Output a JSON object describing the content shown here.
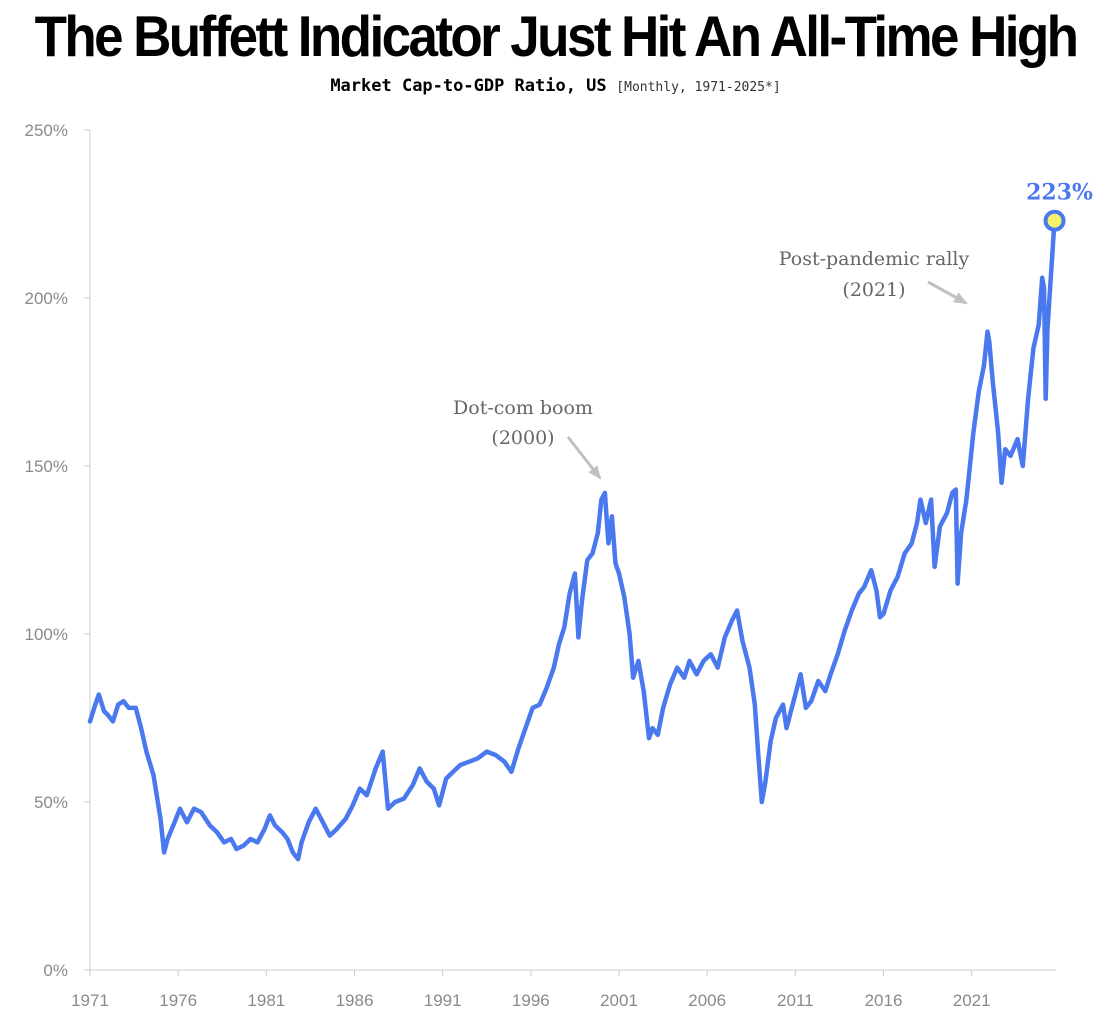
{
  "header": {
    "title": "The Buffett Indicator Just Hit An All-Time High",
    "subtitle": "Market Cap-to-GDP Ratio, US",
    "subtitle_period": "[Monthly, 1971-2025*]"
  },
  "colors": {
    "line": "#4a78ee",
    "marker_fill": "#f7f06a",
    "axis": "#cccccc",
    "arrow": "#c0c0c0"
  },
  "chart_data": {
    "type": "line",
    "title": "The Buffett Indicator Just Hit An All-Time High",
    "subtitle": "Market Cap-to-GDP Ratio, US [Monthly, 1971-2025*]",
    "xlabel": "",
    "ylabel": "",
    "xlim": [
      1971,
      2025.0
    ],
    "ylim": [
      0,
      250
    ],
    "y_ticks": [
      0,
      50,
      100,
      150,
      200,
      250
    ],
    "y_tick_labels": [
      "0%",
      "50%",
      "100%",
      "150%",
      "200%",
      "250%"
    ],
    "x_ticks": [
      1971,
      1976,
      1981,
      1986,
      1991,
      1996,
      2001,
      2006,
      2011,
      2016,
      2021
    ],
    "x_tick_labels": [
      "1971",
      "1976",
      "1981",
      "1986",
      "1991",
      "1996",
      "2001",
      "2006",
      "2011",
      "2016",
      "2021"
    ],
    "grid": false,
    "series": [
      {
        "name": "Market Cap-to-GDP Ratio",
        "points": [
          [
            1971.0,
            74
          ],
          [
            1971.3,
            79
          ],
          [
            1971.5,
            82
          ],
          [
            1971.8,
            77
          ],
          [
            1972.0,
            76
          ],
          [
            1972.3,
            74
          ],
          [
            1972.6,
            79
          ],
          [
            1972.9,
            80
          ],
          [
            1973.2,
            78
          ],
          [
            1973.6,
            78
          ],
          [
            1973.9,
            72
          ],
          [
            1974.2,
            65
          ],
          [
            1974.6,
            58
          ],
          [
            1975.0,
            45
          ],
          [
            1975.2,
            35
          ],
          [
            1975.4,
            39
          ],
          [
            1975.8,
            44
          ],
          [
            1976.1,
            48
          ],
          [
            1976.5,
            44
          ],
          [
            1976.9,
            48
          ],
          [
            1977.3,
            47
          ],
          [
            1977.8,
            43
          ],
          [
            1978.2,
            41
          ],
          [
            1978.6,
            38
          ],
          [
            1979.0,
            39
          ],
          [
            1979.3,
            36
          ],
          [
            1979.7,
            37
          ],
          [
            1980.1,
            39
          ],
          [
            1980.5,
            38
          ],
          [
            1980.9,
            42
          ],
          [
            1981.2,
            46
          ],
          [
            1981.5,
            43
          ],
          [
            1981.9,
            41
          ],
          [
            1982.2,
            39
          ],
          [
            1982.5,
            35
          ],
          [
            1982.8,
            33
          ],
          [
            1983.0,
            38
          ],
          [
            1983.4,
            44
          ],
          [
            1983.8,
            48
          ],
          [
            1984.2,
            44
          ],
          [
            1984.6,
            40
          ],
          [
            1985.0,
            42
          ],
          [
            1985.5,
            45
          ],
          [
            1985.9,
            49
          ],
          [
            1986.3,
            54
          ],
          [
            1986.7,
            52
          ],
          [
            1987.2,
            60
          ],
          [
            1987.6,
            65
          ],
          [
            1987.9,
            48
          ],
          [
            1988.3,
            50
          ],
          [
            1988.8,
            51
          ],
          [
            1989.3,
            55
          ],
          [
            1989.7,
            60
          ],
          [
            1990.1,
            56
          ],
          [
            1990.5,
            54
          ],
          [
            1990.8,
            49
          ],
          [
            1991.2,
            57
          ],
          [
            1991.6,
            59
          ],
          [
            1992.0,
            61
          ],
          [
            1992.5,
            62
          ],
          [
            1993.0,
            63
          ],
          [
            1993.5,
            65
          ],
          [
            1994.0,
            64
          ],
          [
            1994.5,
            62
          ],
          [
            1994.9,
            59
          ],
          [
            1995.3,
            66
          ],
          [
            1995.7,
            72
          ],
          [
            1996.1,
            78
          ],
          [
            1996.5,
            79
          ],
          [
            1996.9,
            84
          ],
          [
            1997.3,
            90
          ],
          [
            1997.6,
            97
          ],
          [
            1997.9,
            102
          ],
          [
            1998.2,
            112
          ],
          [
            1998.5,
            118
          ],
          [
            1998.7,
            99
          ],
          [
            1998.9,
            110
          ],
          [
            1999.2,
            122
          ],
          [
            1999.5,
            124
          ],
          [
            1999.8,
            130
          ],
          [
            2000.0,
            140
          ],
          [
            2000.2,
            142
          ],
          [
            2000.4,
            127
          ],
          [
            2000.6,
            135
          ],
          [
            2000.8,
            121
          ],
          [
            2001.0,
            118
          ],
          [
            2001.3,
            111
          ],
          [
            2001.6,
            100
          ],
          [
            2001.8,
            87
          ],
          [
            2002.1,
            92
          ],
          [
            2002.4,
            83
          ],
          [
            2002.7,
            69
          ],
          [
            2002.9,
            72
          ],
          [
            2003.2,
            70
          ],
          [
            2003.5,
            78
          ],
          [
            2003.9,
            85
          ],
          [
            2004.3,
            90
          ],
          [
            2004.7,
            87
          ],
          [
            2005.0,
            92
          ],
          [
            2005.4,
            88
          ],
          [
            2005.8,
            92
          ],
          [
            2006.2,
            94
          ],
          [
            2006.6,
            90
          ],
          [
            2007.0,
            99
          ],
          [
            2007.4,
            104
          ],
          [
            2007.7,
            107
          ],
          [
            2008.0,
            98
          ],
          [
            2008.4,
            90
          ],
          [
            2008.7,
            79
          ],
          [
            2008.9,
            64
          ],
          [
            2009.1,
            50
          ],
          [
            2009.3,
            56
          ],
          [
            2009.6,
            68
          ],
          [
            2009.9,
            75
          ],
          [
            2010.3,
            79
          ],
          [
            2010.5,
            72
          ],
          [
            2010.9,
            80
          ],
          [
            2011.3,
            88
          ],
          [
            2011.6,
            78
          ],
          [
            2011.9,
            80
          ],
          [
            2012.3,
            86
          ],
          [
            2012.7,
            83
          ],
          [
            2013.0,
            88
          ],
          [
            2013.4,
            94
          ],
          [
            2013.8,
            101
          ],
          [
            2014.2,
            107
          ],
          [
            2014.6,
            112
          ],
          [
            2014.9,
            114
          ],
          [
            2015.3,
            119
          ],
          [
            2015.6,
            113
          ],
          [
            2015.8,
            105
          ],
          [
            2016.0,
            106
          ],
          [
            2016.4,
            113
          ],
          [
            2016.8,
            117
          ],
          [
            2017.2,
            124
          ],
          [
            2017.6,
            127
          ],
          [
            2017.9,
            133
          ],
          [
            2018.1,
            140
          ],
          [
            2018.4,
            133
          ],
          [
            2018.7,
            140
          ],
          [
            2018.9,
            120
          ],
          [
            2019.2,
            132
          ],
          [
            2019.6,
            136
          ],
          [
            2019.9,
            142
          ],
          [
            2020.1,
            143
          ],
          [
            2020.2,
            115
          ],
          [
            2020.4,
            130
          ],
          [
            2020.7,
            140
          ],
          [
            2020.9,
            150
          ],
          [
            2021.1,
            160
          ],
          [
            2021.4,
            172
          ],
          [
            2021.7,
            180
          ],
          [
            2021.9,
            190
          ],
          [
            2022.0,
            187
          ],
          [
            2022.2,
            175
          ],
          [
            2022.5,
            160
          ],
          [
            2022.7,
            145
          ],
          [
            2022.9,
            155
          ],
          [
            2023.2,
            153
          ],
          [
            2023.6,
            158
          ],
          [
            2023.9,
            150
          ],
          [
            2024.2,
            170
          ],
          [
            2024.5,
            185
          ],
          [
            2024.8,
            192
          ],
          [
            2025.0,
            206
          ],
          [
            2025.1,
            203
          ],
          [
            2025.2,
            170
          ],
          [
            2025.3,
            191
          ],
          [
            2025.5,
            207
          ],
          [
            2025.7,
            223
          ]
        ]
      }
    ],
    "annotations": [
      {
        "id": "dotcom",
        "line1": "Dot-com boom",
        "line2": "(2000)",
        "x": 2000.2,
        "y": 143
      },
      {
        "id": "pandemic",
        "line1": "Post-pandemic rally",
        "line2": "(2021)",
        "x": 2021.4,
        "y": 197
      }
    ],
    "end_label": "223%",
    "end_value": 223
  }
}
